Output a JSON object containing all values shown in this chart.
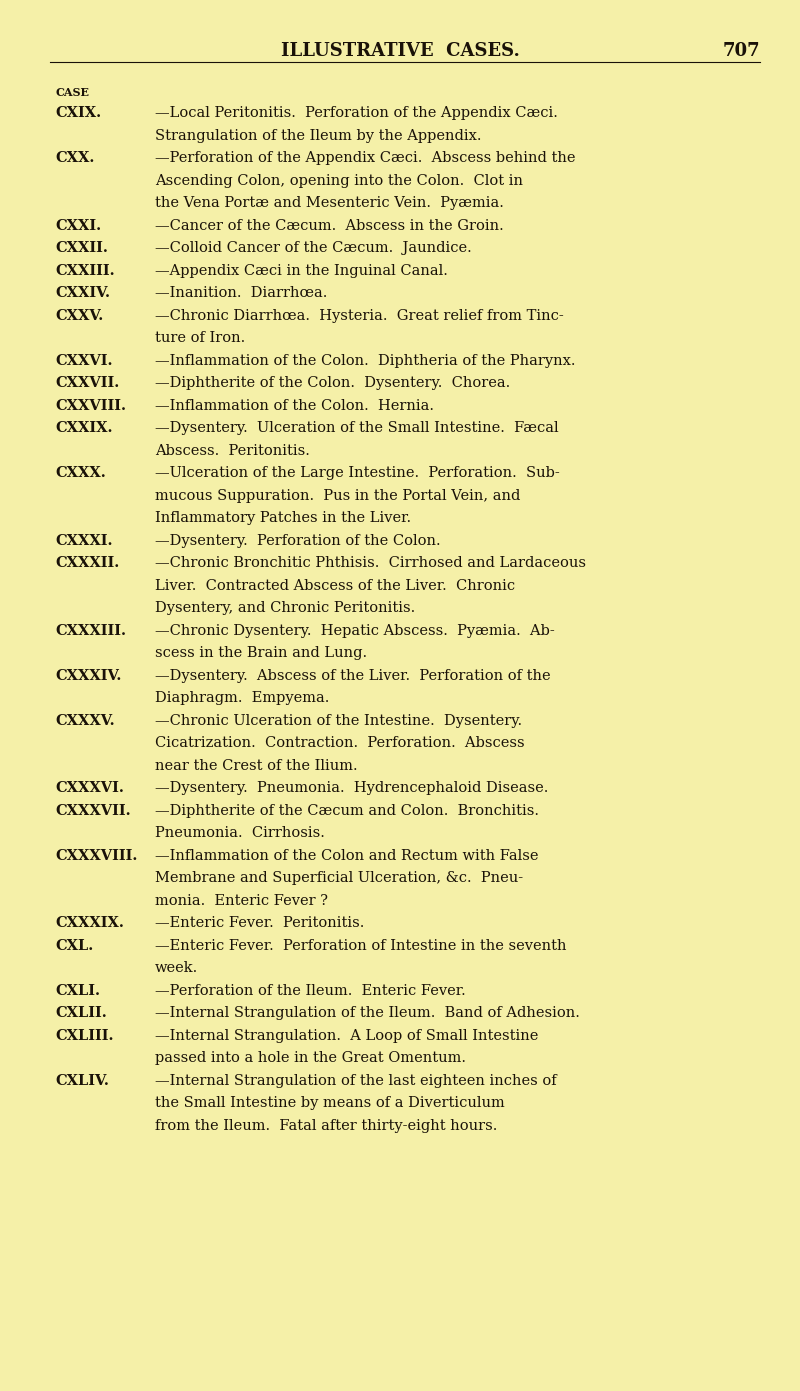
{
  "background_color": "#f5f0a8",
  "text_color": "#1a1208",
  "header_title": "ILLUSTRATIVE  CASES.",
  "header_page": "707",
  "figsize": [
    8.0,
    13.91
  ],
  "dpi": 100,
  "lines": [
    {
      "type": "header_gap"
    },
    {
      "type": "label",
      "text": "CASE"
    },
    {
      "type": "entry",
      "bold": "CXIX.",
      "rest": "—Local Peritonitis.  Perforation of the Appendix Cæci."
    },
    {
      "type": "continuation",
      "text": "Strangulation of the Ileum by the Appendix."
    },
    {
      "type": "entry",
      "bold": "CXX.",
      "rest": "—Perforation of the Appendix Cæci.  Abscess behind the"
    },
    {
      "type": "continuation",
      "text": "Ascending Colon, opening into the Colon.  Clot in"
    },
    {
      "type": "continuation",
      "text": "the Vena Portæ and Mesenteric Vein.  Pyæmia."
    },
    {
      "type": "entry",
      "bold": "CXXI.",
      "rest": "—Cancer of the Cæcum.  Abscess in the Groin."
    },
    {
      "type": "entry",
      "bold": "CXXII.",
      "rest": "—Colloid Cancer of the Cæcum.  Jaundice."
    },
    {
      "type": "entry",
      "bold": "CXXIII.",
      "rest": "—Appendix Cæci in the Inguinal Canal."
    },
    {
      "type": "entry",
      "bold": "CXXIV.",
      "rest": "—Inanition.  Diarrhœa."
    },
    {
      "type": "entry",
      "bold": "CXXV.",
      "rest": "—Chronic Diarrhœa.  Hysteria.  Great relief from Tinc-"
    },
    {
      "type": "continuation",
      "text": "ture of Iron."
    },
    {
      "type": "entry",
      "bold": "CXXVI.",
      "rest": "—Inflammation of the Colon.  Diphtheria of the Pharynx."
    },
    {
      "type": "entry",
      "bold": "CXXVII.",
      "rest": "—Diphtherite of the Colon.  Dysentery.  Chorea."
    },
    {
      "type": "entry",
      "bold": "CXXVIII.",
      "rest": "—Inflammation of the Colon.  Hernia."
    },
    {
      "type": "entry",
      "bold": "CXXIX.",
      "rest": "—Dysentery.  Ulceration of the Small Intestine.  Fæcal"
    },
    {
      "type": "continuation",
      "text": "Abscess.  Peritonitis."
    },
    {
      "type": "entry",
      "bold": "CXXX.",
      "rest": "—Ulceration of the Large Intestine.  Perforation.  Sub-"
    },
    {
      "type": "continuation",
      "text": "mucous Suppuration.  Pus in the Portal Vein, and"
    },
    {
      "type": "continuation",
      "text": "Inflammatory Patches in the Liver."
    },
    {
      "type": "entry",
      "bold": "CXXXI.",
      "rest": "—Dysentery.  Perforation of the Colon."
    },
    {
      "type": "entry",
      "bold": "CXXXII.",
      "rest": "—Chronic Bronchitic Phthisis.  Cirrhosed and Lardaceous"
    },
    {
      "type": "continuation",
      "text": "Liver.  Contracted Abscess of the Liver.  Chronic"
    },
    {
      "type": "continuation",
      "text": "Dysentery, and Chronic Peritonitis."
    },
    {
      "type": "entry",
      "bold": "CXXXIII.",
      "rest": "—Chronic Dysentery.  Hepatic Abscess.  Pyæmia.  Ab-"
    },
    {
      "type": "continuation",
      "text": "scess in the Brain and Lung."
    },
    {
      "type": "entry",
      "bold": "CXXXIV.",
      "rest": "—Dysentery.  Abscess of the Liver.  Perforation of the"
    },
    {
      "type": "continuation",
      "text": "Diaphragm.  Empyema."
    },
    {
      "type": "entry",
      "bold": "CXXXV.",
      "rest": "—Chronic Ulceration of the Intestine.  Dysentery."
    },
    {
      "type": "continuation",
      "text": "Cicatrization.  Contraction.  Perforation.  Abscess"
    },
    {
      "type": "continuation",
      "text": "near the Crest of the Ilium."
    },
    {
      "type": "entry",
      "bold": "CXXXVI.",
      "rest": "—Dysentery.  Pneumonia.  Hydrencephaloid Disease."
    },
    {
      "type": "entry",
      "bold": "CXXXVII.",
      "rest": "—Diphtherite of the Cæcum and Colon.  Bronchitis."
    },
    {
      "type": "continuation",
      "text": "Pneumonia.  Cirrhosis."
    },
    {
      "type": "entry",
      "bold": "CXXXVIII.",
      "rest": "—Inflammation of the Colon and Rectum with False"
    },
    {
      "type": "continuation",
      "text": "Membrane and Superficial Ulceration, &c.  Pneu-"
    },
    {
      "type": "continuation",
      "text": "monia.  Enteric Fever ?"
    },
    {
      "type": "entry",
      "bold": "CXXXIX.",
      "rest": "—Enteric Fever.  Peritonitis."
    },
    {
      "type": "entry",
      "bold": "CXL.",
      "rest": "—Enteric Fever.  Perforation of Intestine in the seventh"
    },
    {
      "type": "continuation",
      "text": "week."
    },
    {
      "type": "entry",
      "bold": "CXLI.",
      "rest": "—Perforation of the Ileum.  Enteric Fever."
    },
    {
      "type": "entry",
      "bold": "CXLII.",
      "rest": "—Internal Strangulation of the Ileum.  Band of Adhesion."
    },
    {
      "type": "entry",
      "bold": "CXLIII.",
      "rest": "—Internal Strangulation.  A Loop of Small Intestine"
    },
    {
      "type": "continuation",
      "text": "passed into a hole in the Great Omentum."
    },
    {
      "type": "entry",
      "bold": "CXLIV.",
      "rest": "—Internal Strangulation of the last eighteen inches of"
    },
    {
      "type": "continuation",
      "text": "the Small Intestine by means of a Diverticulum"
    },
    {
      "type": "continuation",
      "text": "from the Ileum.  Fatal after thirty-eight hours."
    }
  ]
}
